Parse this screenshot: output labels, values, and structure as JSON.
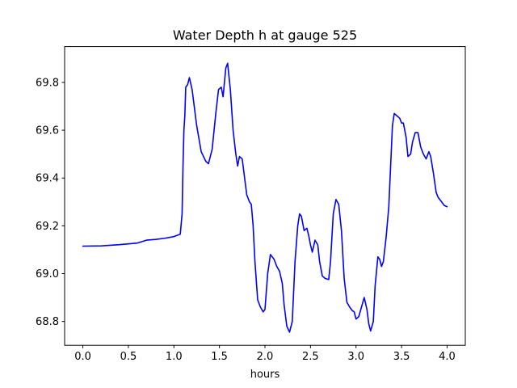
{
  "chart_data": {
    "type": "line",
    "title": "Water Depth h at gauge 525",
    "xlabel": "hours",
    "ylabel": "",
    "xlim": [
      -0.2,
      4.2
    ],
    "ylim": [
      68.7,
      69.95
    ],
    "x_ticks": [
      0.0,
      0.5,
      1.0,
      1.5,
      2.0,
      2.5,
      3.0,
      3.5,
      4.0
    ],
    "x_tick_labels": [
      "0.0",
      "0.5",
      "1.0",
      "1.5",
      "2.0",
      "2.5",
      "3.0",
      "3.5",
      "4.0"
    ],
    "y_ticks": [
      68.8,
      69.0,
      69.2,
      69.4,
      69.6,
      69.8
    ],
    "y_tick_labels": [
      "68.8",
      "69.0",
      "69.2",
      "69.4",
      "69.6",
      "69.8"
    ],
    "grid": false,
    "legend": "none",
    "series": [
      {
        "color": "#0000ff",
        "points": [
          [
            0.0,
            69.115
          ],
          [
            0.2,
            69.116
          ],
          [
            0.4,
            69.121
          ],
          [
            0.6,
            69.128
          ],
          [
            0.7,
            69.14
          ],
          [
            0.8,
            69.143
          ],
          [
            0.9,
            69.148
          ],
          [
            1.0,
            69.155
          ],
          [
            1.07,
            69.165
          ],
          [
            1.09,
            69.25
          ],
          [
            1.1,
            69.45
          ],
          [
            1.11,
            69.6
          ],
          [
            1.12,
            69.66
          ],
          [
            1.13,
            69.78
          ],
          [
            1.15,
            69.79
          ],
          [
            1.17,
            69.82
          ],
          [
            1.2,
            69.77
          ],
          [
            1.25,
            69.62
          ],
          [
            1.3,
            69.51
          ],
          [
            1.35,
            69.47
          ],
          [
            1.38,
            69.46
          ],
          [
            1.42,
            69.52
          ],
          [
            1.46,
            69.67
          ],
          [
            1.49,
            69.77
          ],
          [
            1.52,
            69.78
          ],
          [
            1.54,
            69.74
          ],
          [
            1.57,
            69.86
          ],
          [
            1.59,
            69.88
          ],
          [
            1.62,
            69.77
          ],
          [
            1.65,
            69.6
          ],
          [
            1.68,
            69.5
          ],
          [
            1.7,
            69.45
          ],
          [
            1.72,
            69.49
          ],
          [
            1.75,
            69.48
          ],
          [
            1.78,
            69.39
          ],
          [
            1.8,
            69.33
          ],
          [
            1.83,
            69.3
          ],
          [
            1.85,
            69.29
          ],
          [
            1.87,
            69.2
          ],
          [
            1.89,
            69.05
          ],
          [
            1.92,
            68.89
          ],
          [
            1.95,
            68.86
          ],
          [
            1.98,
            68.84
          ],
          [
            2.0,
            68.85
          ],
          [
            2.03,
            69.0
          ],
          [
            2.06,
            69.08
          ],
          [
            2.08,
            69.07
          ],
          [
            2.1,
            69.06
          ],
          [
            2.13,
            69.03
          ],
          [
            2.16,
            69.01
          ],
          [
            2.19,
            68.96
          ],
          [
            2.21,
            68.87
          ],
          [
            2.24,
            68.78
          ],
          [
            2.27,
            68.755
          ],
          [
            2.3,
            68.8
          ],
          [
            2.33,
            69.05
          ],
          [
            2.36,
            69.2
          ],
          [
            2.38,
            69.25
          ],
          [
            2.4,
            69.24
          ],
          [
            2.43,
            69.18
          ],
          [
            2.46,
            69.19
          ],
          [
            2.48,
            69.16
          ],
          [
            2.5,
            69.12
          ],
          [
            2.52,
            69.09
          ],
          [
            2.55,
            69.14
          ],
          [
            2.58,
            69.12
          ],
          [
            2.6,
            69.05
          ],
          [
            2.63,
            68.99
          ],
          [
            2.66,
            68.98
          ],
          [
            2.7,
            68.975
          ],
          [
            2.72,
            69.05
          ],
          [
            2.75,
            69.25
          ],
          [
            2.78,
            69.31
          ],
          [
            2.81,
            69.29
          ],
          [
            2.84,
            69.18
          ],
          [
            2.87,
            68.98
          ],
          [
            2.9,
            68.88
          ],
          [
            2.93,
            68.86
          ],
          [
            2.96,
            68.845
          ],
          [
            2.98,
            68.84
          ],
          [
            3.0,
            68.81
          ],
          [
            3.03,
            68.82
          ],
          [
            3.06,
            68.86
          ],
          [
            3.09,
            68.9
          ],
          [
            3.12,
            68.85
          ],
          [
            3.14,
            68.79
          ],
          [
            3.16,
            68.76
          ],
          [
            3.19,
            68.8
          ],
          [
            3.21,
            68.95
          ],
          [
            3.24,
            69.07
          ],
          [
            3.26,
            69.06
          ],
          [
            3.28,
            69.03
          ],
          [
            3.3,
            69.05
          ],
          [
            3.33,
            69.15
          ],
          [
            3.36,
            69.28
          ],
          [
            3.38,
            69.45
          ],
          [
            3.4,
            69.62
          ],
          [
            3.42,
            69.67
          ],
          [
            3.45,
            69.66
          ],
          [
            3.48,
            69.65
          ],
          [
            3.5,
            69.63
          ],
          [
            3.52,
            69.63
          ],
          [
            3.55,
            69.57
          ],
          [
            3.57,
            69.49
          ],
          [
            3.6,
            69.5
          ],
          [
            3.62,
            69.55
          ],
          [
            3.65,
            69.59
          ],
          [
            3.68,
            69.59
          ],
          [
            3.71,
            69.53
          ],
          [
            3.74,
            69.5
          ],
          [
            3.77,
            69.48
          ],
          [
            3.8,
            69.51
          ],
          [
            3.82,
            69.49
          ],
          [
            3.85,
            69.42
          ],
          [
            3.88,
            69.34
          ],
          [
            3.9,
            69.32
          ],
          [
            3.94,
            69.3
          ],
          [
            3.97,
            69.285
          ],
          [
            4.0,
            69.28
          ]
        ]
      }
    ]
  }
}
